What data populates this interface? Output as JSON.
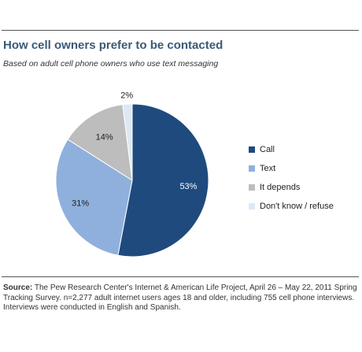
{
  "chart_data": {
    "type": "pie",
    "title": "How cell owners prefer to be contacted",
    "subtitle": "Based on adult cell phone owners who use text messaging",
    "categories": [
      "Call",
      "Text",
      "It depends",
      "Don't know / refuse"
    ],
    "values": [
      53,
      31,
      14,
      2
    ],
    "value_labels": [
      "53%",
      "31%",
      "14%",
      "2%"
    ],
    "colors": [
      "#1f4a7e",
      "#8fb0dd",
      "#bdbdbd",
      "#dce8f4"
    ],
    "legend_position": "right"
  },
  "source": {
    "label": "Source:",
    "text": "The Pew Research Center's Internet & American Life Project, April 26 – May 22, 2011 Spring Tracking Survey. n=2,277 adult internet users ages 18 and older, including 755 cell phone interviews. Interviews were conducted in English and Spanish."
  }
}
